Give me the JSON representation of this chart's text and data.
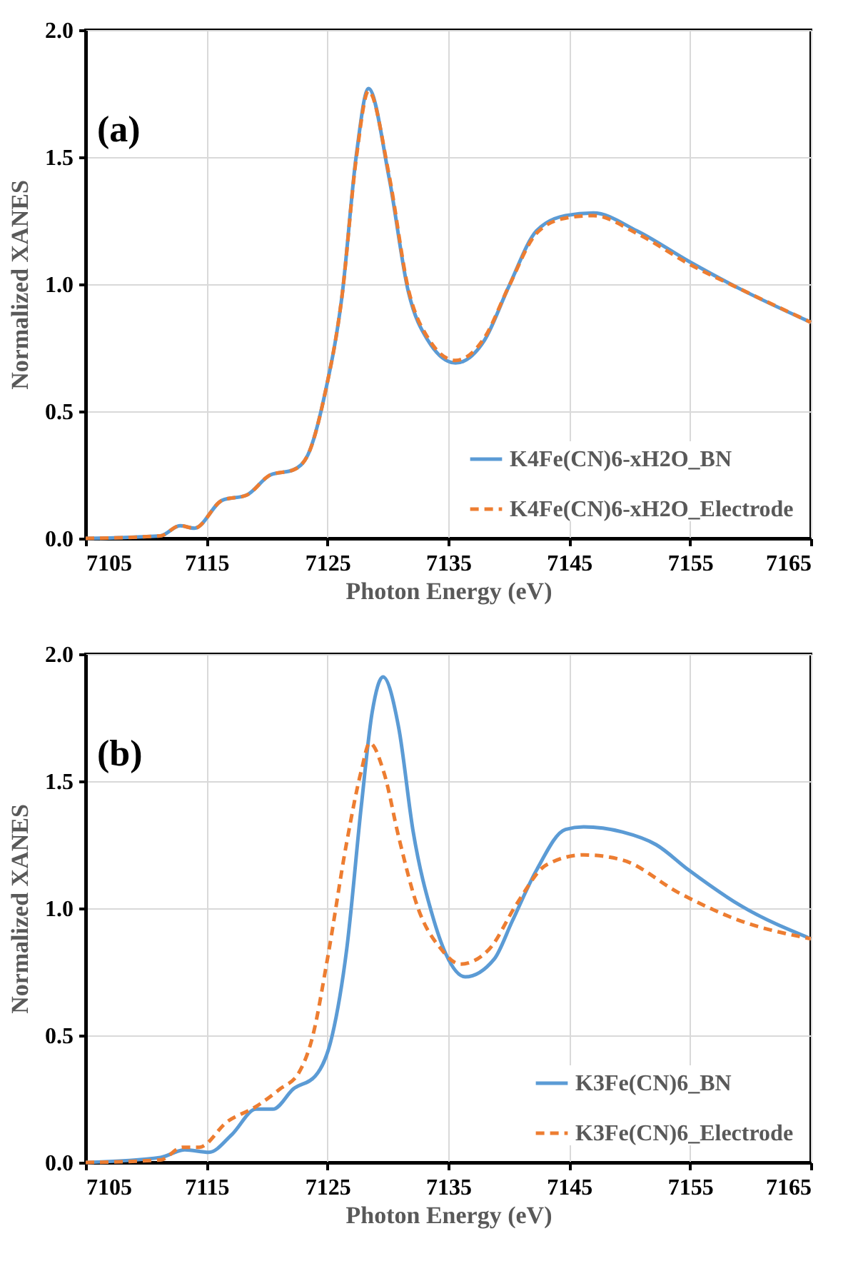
{
  "chart_data": [
    {
      "type": "line",
      "annotations": [
        "(a)"
      ],
      "xlabel": "Photon Energy (eV)",
      "ylabel": "Normalized XANES",
      "xlim": [
        7105,
        7165
      ],
      "xticks": [
        7105,
        7115,
        7125,
        7135,
        7145,
        7155,
        7165
      ],
      "ylim": [
        0,
        2
      ],
      "yticks": [
        {
          "value": 0,
          "label": "0.0"
        },
        {
          "value": 0.5,
          "label": "0.5"
        },
        {
          "value": 1,
          "label": "1.0"
        },
        {
          "value": 1.5,
          "label": "1.5"
        },
        {
          "value": 2,
          "label": "2.0"
        }
      ],
      "grid": true,
      "legend": "bottom right",
      "marker": "none",
      "series": [
        {
          "name": "K4Fe(CN)6-xH2O_BN",
          "color": "#5b9bd5",
          "line_style": "solid",
          "x": [
            7105,
            7111.2,
            7112.8,
            7114,
            7116.3,
            7118.3,
            7120.3,
            7122.2,
            7123.4,
            7124.8,
            7126.2,
            7127.4,
            7128.4,
            7130.1,
            7131.7,
            7133.3,
            7135.6,
            7138,
            7140,
            7142.3,
            7144.7,
            7147,
            7150.6,
            7154.9,
            7159.2,
            7165
          ],
          "values": [
            0,
            0.01,
            0.05,
            0.04,
            0.15,
            0.17,
            0.25,
            0.27,
            0.33,
            0.57,
            0.95,
            1.51,
            1.77,
            1.42,
            0.97,
            0.78,
            0.69,
            0.78,
            0.99,
            1.21,
            1.27,
            1.28,
            1.21,
            1.09,
            0.98,
            0.85
          ]
        },
        {
          "name": "K4Fe(CN)6-xH2O_Electrode",
          "color": "#ed7d31",
          "line_style": "dashed",
          "x": [
            7105,
            7111.2,
            7112.8,
            7114,
            7116.3,
            7118.3,
            7120.3,
            7122.2,
            7123.4,
            7124.8,
            7126.2,
            7127.4,
            7128.4,
            7130.1,
            7131.7,
            7133.3,
            7135.6,
            7138,
            7140,
            7142.3,
            7144.7,
            7147,
            7150.6,
            7154.9,
            7159.2,
            7165
          ],
          "values": [
            0,
            0.01,
            0.05,
            0.04,
            0.15,
            0.17,
            0.25,
            0.27,
            0.33,
            0.57,
            0.95,
            1.5,
            1.76,
            1.43,
            0.98,
            0.79,
            0.7,
            0.79,
            0.99,
            1.2,
            1.26,
            1.27,
            1.2,
            1.08,
            0.98,
            0.85
          ]
        }
      ]
    },
    {
      "type": "line",
      "annotations": [
        "(b)"
      ],
      "xlabel": "Photon Energy (eV)",
      "ylabel": "Normalized XANES",
      "xlim": [
        7105,
        7165
      ],
      "xticks": [
        7105,
        7115,
        7125,
        7135,
        7145,
        7155,
        7165
      ],
      "ylim": [
        0,
        2
      ],
      "yticks": [
        {
          "value": 0,
          "label": "0.0"
        },
        {
          "value": 0.5,
          "label": "0.5"
        },
        {
          "value": 1,
          "label": "1.0"
        },
        {
          "value": 1.5,
          "label": "1.5"
        },
        {
          "value": 2,
          "label": "2.0"
        }
      ],
      "grid": true,
      "legend": "bottom right",
      "marker": "none",
      "series": [
        {
          "name": "K3Fe(CN)6_BN",
          "color": "#5b9bd5",
          "line_style": "solid",
          "x": [
            7105,
            7111.2,
            7113.2,
            7115.2,
            7117.1,
            7119.1,
            7120.5,
            7122.2,
            7124,
            7125.4,
            7126.6,
            7127.8,
            7128.7,
            7129.6,
            7130.9,
            7132.1,
            7133.7,
            7134.8,
            7136.4,
            7138.8,
            7140.3,
            7142.3,
            7144.7,
            7146.2,
            7149.4,
            7152.2,
            7154.9,
            7159.2,
            7165
          ],
          "values": [
            0,
            0.02,
            0.05,
            0.04,
            0.11,
            0.21,
            0.21,
            0.29,
            0.34,
            0.5,
            0.84,
            1.4,
            1.77,
            1.91,
            1.71,
            1.3,
            0.97,
            0.82,
            0.73,
            0.8,
            0.95,
            1.15,
            1.31,
            1.32,
            1.3,
            1.25,
            1.15,
            1.01,
            0.88
          ]
        },
        {
          "name": "K3Fe(CN)6_Electrode",
          "color": "#ed7d31",
          "line_style": "dashed",
          "x": [
            7105,
            7111.2,
            7113,
            7114.4,
            7116.7,
            7119.1,
            7121.1,
            7122.6,
            7123.8,
            7125,
            7126.6,
            7127.8,
            7128.5,
            7129.7,
            7130.9,
            7132.5,
            7134.4,
            7136,
            7138.4,
            7140.7,
            7143.1,
            7146.2,
            7149.4,
            7154.1,
            7159.2,
            7165
          ],
          "values": [
            0,
            0.01,
            0.06,
            0.06,
            0.16,
            0.22,
            0.29,
            0.35,
            0.5,
            0.8,
            1.26,
            1.54,
            1.65,
            1.53,
            1.28,
            1,
            0.84,
            0.78,
            0.84,
            1.02,
            1.17,
            1.21,
            1.19,
            1.06,
            0.95,
            0.88
          ]
        }
      ]
    }
  ]
}
